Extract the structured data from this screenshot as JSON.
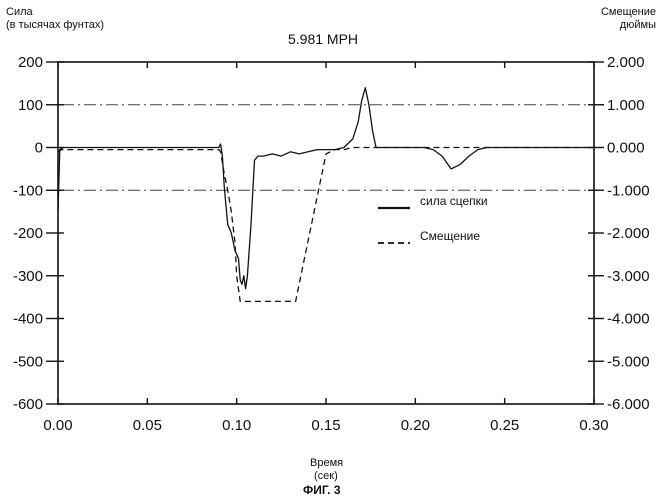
{
  "chart_data": {
    "type": "line",
    "title": "5.981 MPH",
    "figure_caption": "ФИГ. 3",
    "left_axis_label": [
      "Сила",
      "(в тысячах фунтах)"
    ],
    "right_axis_label": [
      "Смещение",
      "дюймы"
    ],
    "xlabel": [
      "Время",
      "(сек)"
    ],
    "xlim": [
      0,
      0.3
    ],
    "ylim_left": [
      -600,
      200
    ],
    "ylim_right": [
      -6,
      2
    ],
    "x_ticks": [
      "0.00",
      "0.05",
      "0.10",
      "0.15",
      "0.20",
      "0.25",
      "0.30"
    ],
    "y_ticks_left": [
      "200",
      "100",
      "0",
      "-100",
      "-200",
      "-300",
      "-400",
      "-500",
      "-600"
    ],
    "y_ticks_right": [
      "2.000",
      "1.000",
      "0.000",
      "-1.000",
      "-2.000",
      "-3.000",
      "-4.000",
      "-5.000",
      "-6.000"
    ],
    "grid": false,
    "legend_position": "right-middle",
    "series": [
      {
        "name": "сила сцепки",
        "style": "solid",
        "axis": "left",
        "x": [
          0,
          0.001,
          0.003,
          0.03,
          0.06,
          0.09,
          0.091,
          0.092,
          0.093,
          0.095,
          0.097,
          0.099,
          0.101,
          0.102,
          0.103,
          0.104,
          0.105,
          0.106,
          0.108,
          0.11,
          0.112,
          0.115,
          0.12,
          0.125,
          0.13,
          0.135,
          0.14,
          0.145,
          0.15,
          0.155,
          0.16,
          0.165,
          0.168,
          0.17,
          0.172,
          0.174,
          0.176,
          0.178,
          0.182,
          0.19,
          0.2,
          0.205,
          0.21,
          0.215,
          0.22,
          0.225,
          0.23,
          0.235,
          0.24,
          0.25,
          0.3
        ],
        "values": [
          -150,
          -5,
          0,
          0,
          0,
          0,
          8,
          -20,
          -90,
          -180,
          -200,
          -240,
          -260,
          -310,
          -320,
          -300,
          -330,
          -300,
          -180,
          -30,
          -20,
          -20,
          -15,
          -20,
          -10,
          -15,
          -10,
          -5,
          -5,
          -5,
          0,
          20,
          60,
          110,
          140,
          100,
          40,
          0,
          0,
          0,
          0,
          0,
          -5,
          -20,
          -50,
          -40,
          -20,
          -5,
          0,
          0,
          0
        ]
      },
      {
        "name": "Смещение",
        "style": "dashed",
        "axis": "right",
        "x": [
          0,
          0.002,
          0.09,
          0.091,
          0.093,
          0.095,
          0.097,
          0.099,
          0.1,
          0.102,
          0.105,
          0.11,
          0.12,
          0.13,
          0.133,
          0.15,
          0.155,
          0.16,
          0.165,
          0.2,
          0.3
        ],
        "values": [
          -0.1,
          -0.05,
          -0.05,
          -0.1,
          -0.6,
          -1.0,
          -1.5,
          -2.2,
          -3.0,
          -3.6,
          -3.6,
          -3.6,
          -3.6,
          -3.6,
          -3.6,
          -0.15,
          -0.05,
          -0.05,
          0,
          0,
          0
        ]
      }
    ],
    "reference_lines": [
      {
        "axis": "left",
        "value": 100,
        "style": "dash-dot"
      },
      {
        "axis": "left",
        "value": -100,
        "style": "dash-dot"
      }
    ]
  }
}
